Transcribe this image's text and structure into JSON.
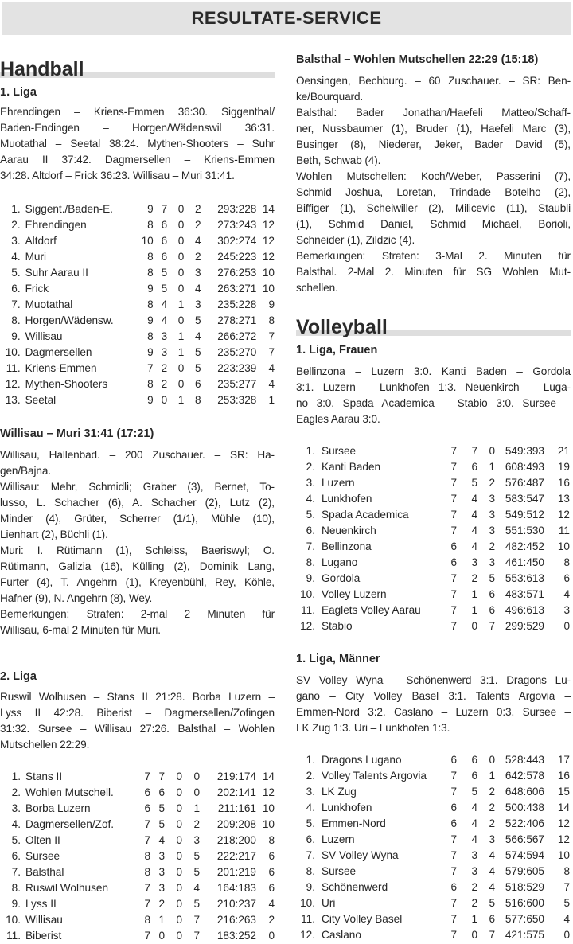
{
  "header": {
    "title": "RESULTATE-SERVICE"
  },
  "handball": {
    "title": "Handball",
    "liga1": {
      "title": "1. Liga",
      "results": [
        "Ehrendingen – Kriens-Emmen 36:30. Siggenthal/",
        "Baden-Endingen – Horgen/Wädenswil 36:31.",
        "Muotathal – Seetal 38:24. Mythen-Shooters – Suhr",
        "Aarau II 37:42. Dagmersellen – Kriens-Emmen",
        "34:28. Altdorf – Frick 36:23. Willisau – Muri 31:41."
      ],
      "table": [
        [
          "1.",
          "Siggent./Baden-E.",
          "9",
          "7",
          "0",
          "2",
          "293:228",
          "14"
        ],
        [
          "2.",
          "Ehrendingen",
          "8",
          "6",
          "0",
          "2",
          "273:243",
          "12"
        ],
        [
          "3.",
          "Altdorf",
          "10",
          "6",
          "0",
          "4",
          "302:274",
          "12"
        ],
        [
          "4.",
          "Muri",
          "8",
          "6",
          "0",
          "2",
          "245:223",
          "12"
        ],
        [
          "5.",
          "Suhr Aarau II",
          "8",
          "5",
          "0",
          "3",
          "276:253",
          "10"
        ],
        [
          "6.",
          "Frick",
          "9",
          "5",
          "0",
          "4",
          "263:271",
          "10"
        ],
        [
          "7.",
          "Muotathal",
          "8",
          "4",
          "1",
          "3",
          "235:228",
          "9"
        ],
        [
          "8.",
          "Horgen/Wädensw.",
          "9",
          "4",
          "0",
          "5",
          "278:271",
          "8"
        ],
        [
          "9.",
          "Willisau",
          "8",
          "3",
          "1",
          "4",
          "266:272",
          "7"
        ],
        [
          "10.",
          "Dagmersellen",
          "9",
          "3",
          "1",
          "5",
          "235:270",
          "7"
        ],
        [
          "11.",
          "Kriens-Emmen",
          "7",
          "2",
          "0",
          "5",
          "223:239",
          "4"
        ],
        [
          "12.",
          "Mythen-Shooters",
          "8",
          "2",
          "0",
          "6",
          "235:277",
          "4"
        ],
        [
          "13.",
          "Seetal",
          "9",
          "0",
          "1",
          "8",
          "253:328",
          "1"
        ]
      ]
    },
    "match1": {
      "title": "Willisau – Muri 31:41 (17:21)",
      "lines": [
        "Willisau, Hallenbad. – 200 Zuschauer. – SR: Ha-",
        "gen/Bajna.",
        "Willisau: Mehr, Schmidli; Graber (3), Bernet, To-",
        "lusso, L. Schacher (6), A. Schacher (2), Lutz (2),",
        "Minder (4), Grüter, Scherrer (1/1), Mühle (10),",
        "Lienhart (2), Büchli (1).",
        "Muri: I. Rütimann (1), Schleiss, Baeriswyl; O.",
        "Rütimann, Galizia (16), Külling (2), Dominik Lang,",
        "Furter (4), T. Angehrn (1), Kreyenbühl, Rey, Köhle,",
        "Hafner (9), N. Angehrn (8), Wey.",
        "Bemerkungen: Strafen: 2-mal 2 Minuten für",
        "Willisau, 6-mal 2 Minuten für Muri."
      ],
      "last_lines": [
        1,
        5,
        9,
        11
      ]
    },
    "liga2": {
      "title": "2. Liga",
      "results": [
        "Ruswil Wolhusen – Stans II 21:28. Borba Luzern –",
        "Lyss II 42:28. Biberist – Dagmersellen/Zofingen",
        "31:32. Sursee – Willisau 27:26. Balsthal – Wohlen",
        "Mutschellen 22:29."
      ],
      "table": [
        [
          "1.",
          "Stans II",
          "7",
          "7",
          "0",
          "0",
          "219:174",
          "14"
        ],
        [
          "2.",
          "Wohlen Mutschell.",
          "6",
          "6",
          "0",
          "0",
          "202:141",
          "12"
        ],
        [
          "3.",
          "Borba Luzern",
          "6",
          "5",
          "0",
          "1",
          "211:161",
          "10"
        ],
        [
          "4.",
          "Dagmersellen/Zof.",
          "7",
          "5",
          "0",
          "2",
          "209:208",
          "10"
        ],
        [
          "5.",
          "Olten II",
          "7",
          "4",
          "0",
          "3",
          "218:200",
          "8"
        ],
        [
          "6.",
          "Sursee",
          "8",
          "3",
          "0",
          "5",
          "222:217",
          "6"
        ],
        [
          "7.",
          "Balsthal",
          "8",
          "3",
          "0",
          "5",
          "201:219",
          "6"
        ],
        [
          "8.",
          "Ruswil Wolhusen",
          "7",
          "3",
          "0",
          "4",
          "164:183",
          "6"
        ],
        [
          "9.",
          "Lyss II",
          "7",
          "2",
          "0",
          "5",
          "210:237",
          "4"
        ],
        [
          "10.",
          "Willisau",
          "8",
          "1",
          "0",
          "7",
          "216:263",
          "2"
        ],
        [
          "11.",
          "Biberist",
          "7",
          "0",
          "0",
          "7",
          "183:252",
          "0"
        ]
      ]
    },
    "match2": {
      "title": "Balsthal – Wohlen Mutschellen 22:29 (15:18)",
      "lines": [
        "Oensingen, Bechburg. – 60 Zuschauer. – SR: Ben-",
        "ke/Bourquard.",
        "Balsthal: Bader Jonathan/Haefeli Matteo/Schaff-",
        "ner, Nussbaumer (1), Bruder (1), Haefeli Marc (3),",
        "Businger (8), Niederer, Jeker, Bader David (5),",
        "Beth, Schwab (4).",
        "Wohlen Mutschellen: Koch/Weber, Passerini (7),",
        "Schmid Joshua, Loretan, Trindade Botelho (2),",
        "Biffiger (1), Scheiwiller (2), Milicevic (11), Staubli",
        "(1), Schmid Daniel, Schmid Michael, Borioli,",
        "Schneider (1), Zildzic (4).",
        "Bemerkungen: Strafen: 3-Mal 2. Minuten für",
        "Balsthal. 2-Mal 2. Minuten für SG Wohlen Mut-",
        "schellen."
      ],
      "last_lines": [
        1,
        5,
        10,
        13
      ]
    }
  },
  "volleyball": {
    "title": "Volleyball",
    "frauen": {
      "title": "1. Liga, Frauen",
      "results": [
        "Bellinzona – Luzern 3:0. Kanti Baden – Gordola",
        "3:1. Luzern – Lunkhofen 1:3. Neuenkirch – Luga-",
        "no 3:0. Spada Academica – Stabio 3:0. Sursee –",
        "Eagles Aarau 3:0."
      ],
      "table": [
        [
          "1.",
          "Sursee",
          "7",
          "7",
          "0",
          "549:393",
          "21"
        ],
        [
          "2.",
          "Kanti Baden",
          "7",
          "6",
          "1",
          "608:493",
          "19"
        ],
        [
          "3.",
          "Luzern",
          "7",
          "5",
          "2",
          "576:487",
          "16"
        ],
        [
          "4.",
          "Lunkhofen",
          "7",
          "4",
          "3",
          "583:547",
          "13"
        ],
        [
          "5.",
          "Spada Academica",
          "7",
          "4",
          "3",
          "549:512",
          "12"
        ],
        [
          "6.",
          "Neuenkirch",
          "7",
          "4",
          "3",
          "551:530",
          "11"
        ],
        [
          "7.",
          "Bellinzona",
          "6",
          "4",
          "2",
          "482:452",
          "10"
        ],
        [
          "8.",
          "Lugano",
          "6",
          "3",
          "3",
          "461:450",
          "8"
        ],
        [
          "9.",
          "Gordola",
          "7",
          "2",
          "5",
          "553:613",
          "6"
        ],
        [
          "10.",
          "Volley Luzern",
          "7",
          "1",
          "6",
          "483:571",
          "4"
        ],
        [
          "11.",
          "Eaglets Volley Aarau",
          "7",
          "1",
          "6",
          "496:613",
          "3"
        ],
        [
          "12.",
          "Stabio",
          "7",
          "0",
          "7",
          "299:529",
          "0"
        ]
      ]
    },
    "maenner": {
      "title": "1. Liga, Männer",
      "results": [
        "SV Volley Wyna – Schönenwerd 3:1. Dragons Lu-",
        "gano – City Volley Basel 3:1. Talents Argovia –",
        "Emmen-Nord 3:2. Caslano – Luzern 0:3. Sursee –",
        "LK Zug 1:3. Uri – Lunkhofen 1:3."
      ],
      "table": [
        [
          "1.",
          "Dragons Lugano",
          "6",
          "6",
          "0",
          "528:443",
          "17"
        ],
        [
          "2.",
          "Volley Talents Argovia",
          "7",
          "6",
          "1",
          "642:578",
          "16"
        ],
        [
          "3.",
          "LK Zug",
          "7",
          "5",
          "2",
          "648:606",
          "15"
        ],
        [
          "4.",
          "Lunkhofen",
          "6",
          "4",
          "2",
          "500:438",
          "14"
        ],
        [
          "5.",
          "Emmen-Nord",
          "6",
          "4",
          "2",
          "522:406",
          "12"
        ],
        [
          "6.",
          "Luzern",
          "7",
          "4",
          "3",
          "566:567",
          "12"
        ],
        [
          "7.",
          "SV Volley Wyna",
          "7",
          "3",
          "4",
          "574:594",
          "10"
        ],
        [
          "8.",
          "Sursee",
          "7",
          "3",
          "4",
          "579:605",
          "8"
        ],
        [
          "9.",
          "Schönenwerd",
          "6",
          "2",
          "4",
          "518:529",
          "7"
        ],
        [
          "10.",
          "Uri",
          "7",
          "2",
          "5",
          "516:600",
          "5"
        ],
        [
          "11.",
          "City Volley Basel",
          "7",
          "1",
          "6",
          "577:650",
          "4"
        ],
        [
          "12.",
          "Caslano",
          "7",
          "0",
          "7",
          "421:575",
          "0"
        ]
      ]
    }
  }
}
